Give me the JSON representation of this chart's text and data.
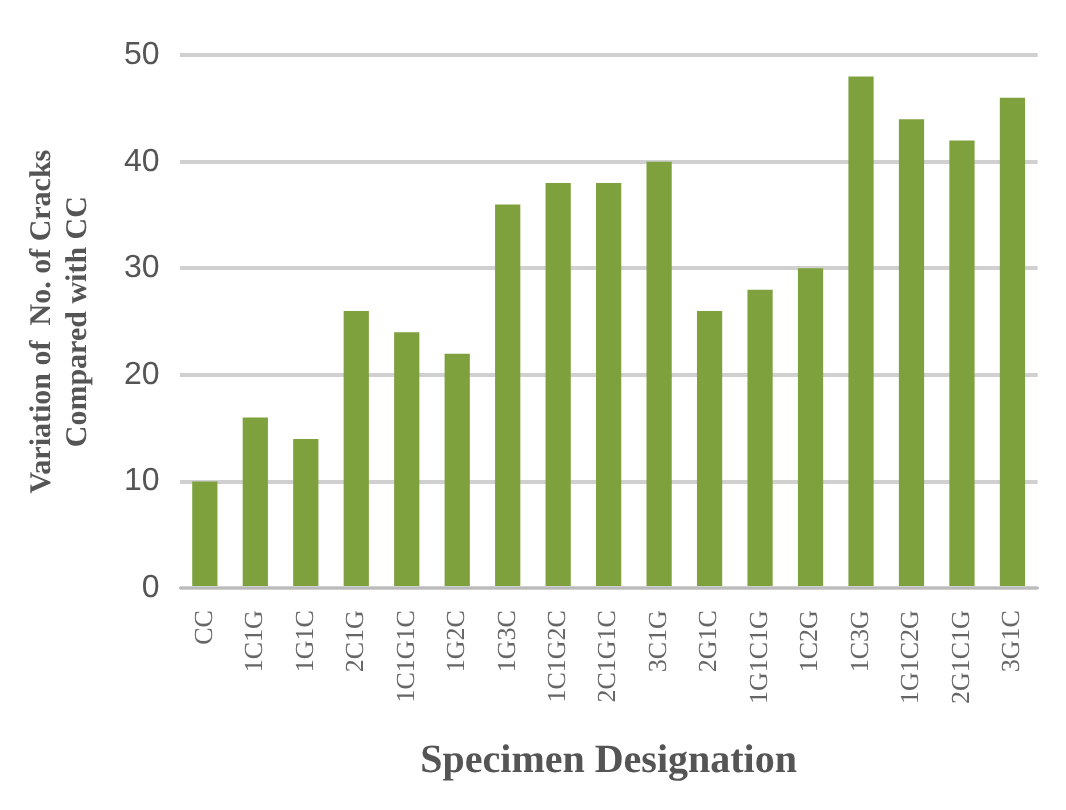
{
  "chart_data": {
    "type": "bar",
    "xlabel": "Specimen Designation",
    "ylabel": "Variation of  No. of Cracks\nCompared with CC",
    "categories": [
      "CC",
      "1C1G",
      "1G1C",
      "2C1G",
      "1C1G1C",
      "1G2C",
      "1G3C",
      "1C1G2C",
      "2C1G1C",
      "3C1G",
      "2G1C",
      "1G1C1G",
      "1C2G",
      "1C3G",
      "1G1C2G",
      "2G1C1G",
      "3G1C"
    ],
    "values": [
      10,
      16,
      14,
      26,
      24,
      22,
      36,
      38,
      38,
      40,
      26,
      28,
      30,
      48,
      44,
      42,
      46
    ],
    "color": "#7ea13d",
    "ylim": [
      0,
      50
    ],
    "yticks": [
      0,
      10,
      20,
      30,
      40,
      50
    ],
    "grid": "y"
  }
}
